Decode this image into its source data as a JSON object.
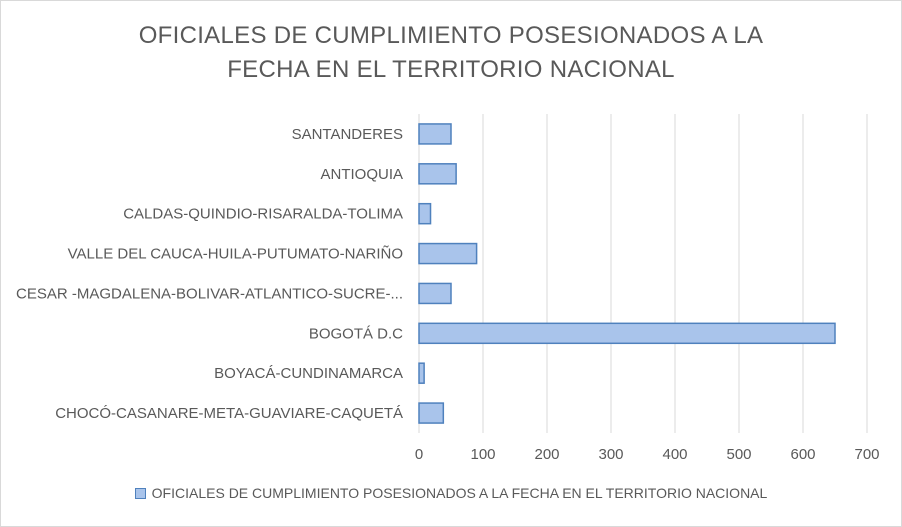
{
  "chart_data": {
    "type": "bar",
    "orientation": "horizontal",
    "title_lines": [
      "OFICIALES  DE  CUMPLIMIENTO  POSESIONADOS  A  LA",
      "FECHA  EN  EL  TERRITORIO  NACIONAL"
    ],
    "categories": [
      "SANTANDERES",
      "ANTIOQUIA",
      "CALDAS-QUINDIO-RISARALDA-TOLIMA",
      "VALLE DEL CAUCA-HUILA-PUTUMATO-NARIÑO",
      "CESAR -MAGDALENA-BOLIVAR-ATLANTICO-SUCRE-...",
      "BOGOTÁ D.C",
      "BOYACÁ-CUNDINAMARCA",
      "CHOCÓ-CASANARE-META-GUAVIARE-CAQUETÁ"
    ],
    "series": [
      {
        "name": "OFICIALES DE CUMPLIMIENTO POSESIONADOS A LA FECHA EN EL TERRITORIO NACIONAL",
        "values": [
          50,
          58,
          18,
          90,
          50,
          650,
          8,
          38
        ]
      }
    ],
    "xlim": [
      0,
      700
    ],
    "xticks": [
      "0",
      "100",
      "200",
      "300",
      "400",
      "500",
      "600",
      "700"
    ],
    "grid": true,
    "legend_position": "bottom",
    "colors": {
      "bar_fill": "#a9c4eb",
      "bar_stroke": "#4f81bd",
      "grid": "#d9d9d9",
      "text": "#595959"
    }
  }
}
